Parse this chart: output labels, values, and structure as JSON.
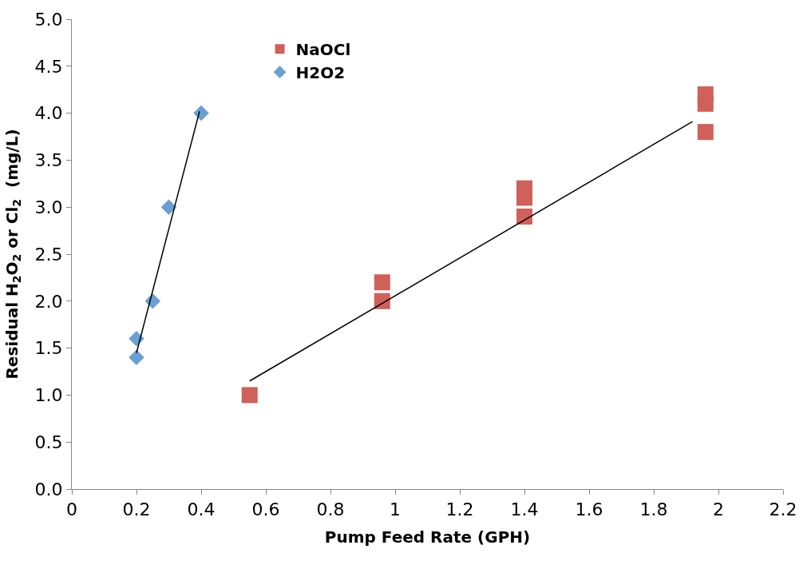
{
  "chart_data": {
    "type": "scatter",
    "xlabel": "Pump Feed Rate (GPH)",
    "ylabel": "Residual H$_{2}$O$_{2}$ or Cl$_{2}$  (mg/L)",
    "xlim": [
      0,
      2.2
    ],
    "xticks": [
      0,
      0.2,
      0.4,
      0.6,
      0.8,
      1,
      1.2,
      1.4,
      1.6,
      1.8,
      2,
      2.2
    ],
    "ylim": [
      0,
      5
    ],
    "yticks": [
      {
        "value": 0,
        "label": "0.0"
      },
      0.5,
      {
        "value": 1,
        "label": "1.0"
      },
      1.5,
      {
        "value": 2,
        "label": "2.0"
      },
      2.5,
      {
        "value": 3,
        "label": "3.0"
      },
      3.5,
      {
        "value": 4,
        "label": "4.0"
      },
      4.5,
      {
        "value": 5,
        "label": "5.0"
      }
    ],
    "legend": "top left",
    "series": [
      {
        "name": "NaOCl",
        "color": "#d0605a",
        "marker": "square",
        "x": [
          0.55,
          0.96,
          0.96,
          1.4,
          1.4,
          1.4,
          1.96,
          1.96,
          1.96
        ],
        "values": [
          1.0,
          2.0,
          2.2,
          2.9,
          3.1,
          3.2,
          3.8,
          4.1,
          4.2
        ]
      },
      {
        "name": "H2O2",
        "color": "#6a9fd4",
        "marker": "diamond",
        "x": [
          0.2,
          0.2,
          0.25,
          0.3,
          0.4
        ],
        "values": [
          1.4,
          1.6,
          2.0,
          3.0,
          4.0
        ]
      },
      {
        "type": "line",
        "color": "#000000",
        "marker": "none",
        "x": [
          0.55,
          1.92
        ],
        "values": [
          1.15,
          3.91
        ]
      },
      {
        "type": "line",
        "color": "#000000",
        "marker": "none",
        "x": [
          0.2,
          0.395
        ],
        "values": [
          1.45,
          4.02
        ]
      }
    ]
  }
}
